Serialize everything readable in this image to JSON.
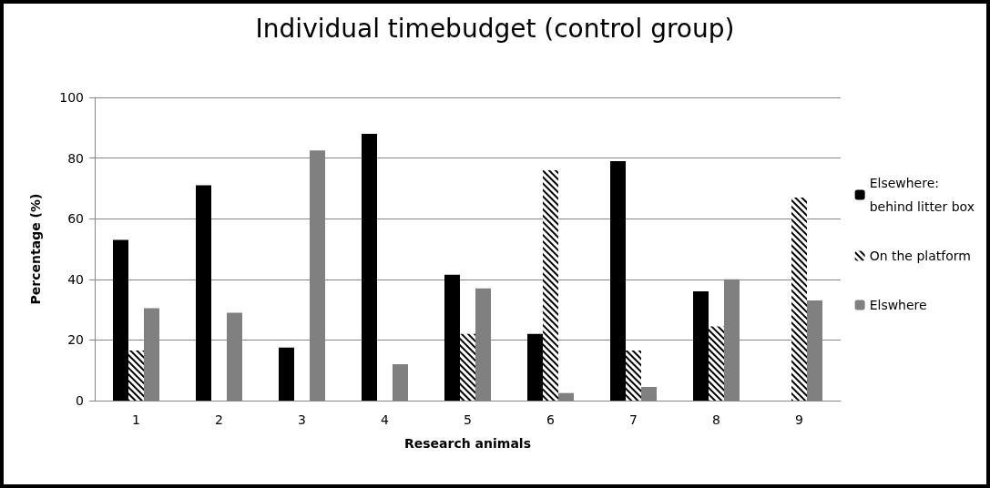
{
  "chart_data": {
    "type": "bar",
    "title": "Individual timebudget (control group)",
    "xlabel": "Research animals",
    "ylabel": "Percentage (%)",
    "categories": [
      "1",
      "2",
      "3",
      "4",
      "5",
      "6",
      "7",
      "8",
      "9"
    ],
    "series": [
      {
        "name": "Elsewhere:\nbehind litter box",
        "color": "#000000",
        "values": [
          53,
          71,
          17.5,
          88,
          41.5,
          22,
          79,
          36,
          0
        ]
      },
      {
        "name": "On the platform",
        "color": "#000000",
        "values": [
          16.5,
          0,
          0,
          0,
          22,
          76,
          16.5,
          24.5,
          67
        ]
      },
      {
        "name": "Elswhere",
        "color": "#808080",
        "values": [
          30.5,
          29,
          82.5,
          12,
          37,
          2.5,
          4.5,
          40,
          33
        ]
      }
    ],
    "ylim": [
      0,
      100
    ],
    "yticks": [
      0,
      20,
      40,
      60,
      80,
      100
    ],
    "grid": "y",
    "legend": "right"
  }
}
